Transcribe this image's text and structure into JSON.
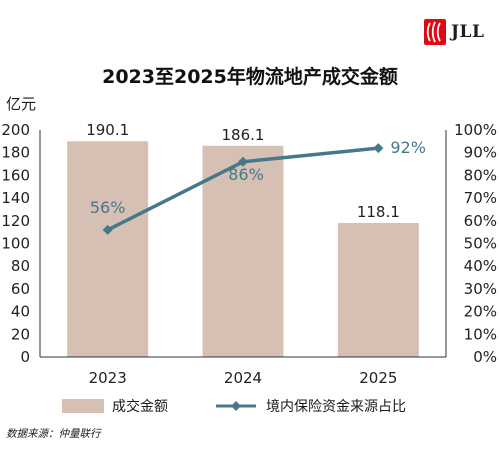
{
  "brand": {
    "name": "JLL",
    "logo_icon": "jll-flame-logo-icon",
    "logo_color": "#e30613"
  },
  "title": "2023至2025年物流地产成交金额",
  "left_axis_unit": "亿元",
  "source": "数据来源：仲量联行",
  "colors": {
    "bar": "#d6c0b3",
    "line": "#46788a",
    "label": "#222222",
    "line_label": "#46788a"
  },
  "chart_data": {
    "type": "bar",
    "categories": [
      "2023",
      "2024",
      "2025"
    ],
    "series": [
      {
        "name": "成交金额",
        "type": "bar",
        "axis": "left",
        "values": [
          190.1,
          186.1,
          118.1
        ],
        "labels": [
          "190.1",
          "186.1",
          "118.1"
        ]
      },
      {
        "name": "境内保险资金来源占比",
        "type": "line",
        "axis": "right",
        "values": [
          56,
          86,
          92
        ],
        "labels": [
          "56%",
          "86%",
          "92%"
        ]
      }
    ],
    "y_left": {
      "min": 0,
      "max": 200,
      "ticks": [
        "0",
        "20",
        "40",
        "60",
        "80",
        "100",
        "120",
        "140",
        "160",
        "180",
        "200"
      ]
    },
    "y_right": {
      "min": 0,
      "max": 100,
      "ticks": [
        "0%",
        "10%",
        "20%",
        "30%",
        "40%",
        "50%",
        "60%",
        "70%",
        "80%",
        "90%",
        "100%"
      ]
    },
    "grid": false,
    "legend": "bottom"
  }
}
